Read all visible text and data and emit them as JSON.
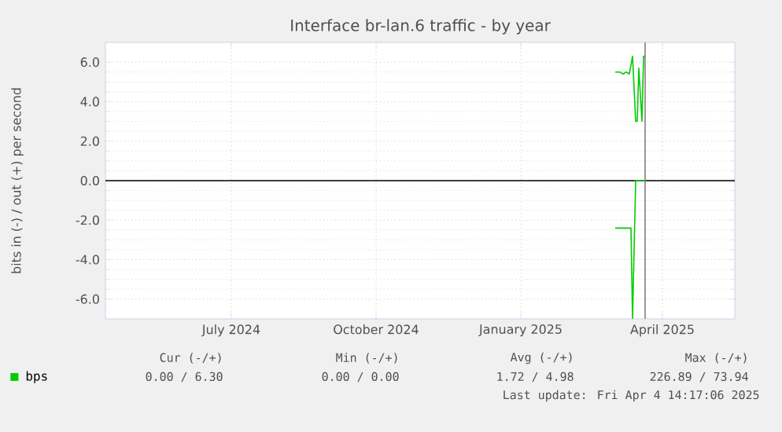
{
  "chart_data": {
    "type": "line",
    "title": "Interface br-lan.6 traffic - by year",
    "ylabel": "bits in (-) / out (+) per second",
    "xlim": [
      "2024-04-26",
      "2025-05-31"
    ],
    "xticks": [
      {
        "value": "2024-07-15",
        "label": "July 2024"
      },
      {
        "value": "2024-10-15",
        "label": "October 2024"
      },
      {
        "value": "2025-01-15",
        "label": "January 2025"
      },
      {
        "value": "2025-04-15",
        "label": "April 2025"
      }
    ],
    "ylim": [
      -7,
      7
    ],
    "yticks": [
      {
        "value": -6,
        "label": "-6.0"
      },
      {
        "value": -4,
        "label": "-4.0"
      },
      {
        "value": -2,
        "label": "-2.0"
      },
      {
        "value": 0,
        "label": "0.0"
      },
      {
        "value": 2,
        "label": "2.0"
      },
      {
        "value": 4,
        "label": "4.0"
      },
      {
        "value": 6,
        "label": "6.0"
      }
    ],
    "grid": true,
    "legend": "bottom left",
    "marker": "none",
    "series": [
      {
        "name": "bps",
        "color": "#00cc00",
        "x": [
          "2025-03-16",
          "2025-03-19",
          "2025-03-21",
          "2025-03-23",
          "2025-03-25",
          "2025-03-27",
          "2025-03-29",
          "2025-03-30",
          "2025-03-31",
          "2025-04-02",
          "2025-04-03",
          "2025-04-04"
        ],
        "values": [
          5.5,
          5.5,
          5.4,
          5.5,
          5.4,
          6.3,
          3.0,
          3.0,
          5.7,
          3.0,
          6.3,
          6.3
        ]
      },
      {
        "color": "#00cc00",
        "x": [
          "2025-03-16",
          "2025-03-26",
          "2025-03-27",
          "2025-03-29",
          "2025-04-04"
        ],
        "values": [
          -2.4,
          -2.4,
          -7.0,
          0,
          0
        ]
      }
    ],
    "ref_lines": [
      {
        "axis": "y",
        "value": 0,
        "color": "#000000"
      },
      {
        "axis": "x",
        "value": "2025-04-04",
        "color": "#808080"
      }
    ],
    "annotations": [
      "Cur (-/+)",
      "Min (-/+)",
      "Avg (-/+)",
      "Max (-/+)",
      "0.00 / 6.30",
      "0.00 / 0.00",
      "1.72 / 4.98",
      "226.89 / 73.94",
      "Last update: Fri Apr 4 14:17:06 2025"
    ]
  }
}
